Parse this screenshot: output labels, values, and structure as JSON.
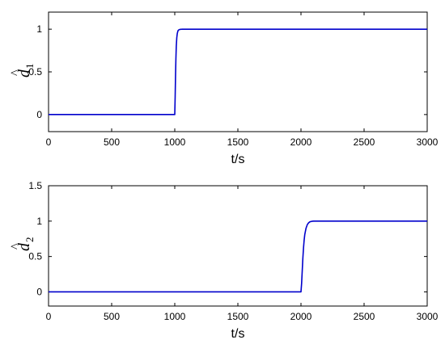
{
  "chart_data": [
    {
      "type": "line",
      "ylabel": {
        "symbol": "d",
        "hat": "^",
        "subscript": "1"
      },
      "xlabel": "t/s",
      "xlim": [
        0,
        3000
      ],
      "ylim": [
        -0.2,
        1.2
      ],
      "xticks": [
        "0",
        "500",
        "1000",
        "1500",
        "2000",
        "2500",
        "3000"
      ],
      "yticks": [
        "0",
        "0.5",
        "1"
      ],
      "grid": false,
      "series": [
        {
          "color": "#0000cc",
          "x": [
            0,
            1000,
            1003,
            1006,
            1009,
            1012,
            1016,
            1020,
            1025,
            1030,
            1040,
            1060,
            1100,
            3000
          ],
          "y": [
            0,
            0,
            0.2,
            0.45,
            0.65,
            0.8,
            0.9,
            0.95,
            0.98,
            0.99,
            0.997,
            1.0,
            1.0,
            1.0
          ]
        }
      ]
    },
    {
      "type": "line",
      "ylabel": {
        "symbol": "d",
        "hat": "^",
        "subscript": "2"
      },
      "xlabel": "t/s",
      "xlim": [
        0,
        3000
      ],
      "ylim": [
        -0.2,
        1.5
      ],
      "xticks": [
        "0",
        "500",
        "1000",
        "1500",
        "2000",
        "2500",
        "3000"
      ],
      "yticks": [
        "0",
        "0.5",
        "1",
        "1.5"
      ],
      "grid": false,
      "series": [
        {
          "color": "#0000cc",
          "x": [
            0,
            2000,
            2005,
            2010,
            2015,
            2020,
            2025,
            2030,
            2040,
            2050,
            2060,
            2070,
            2085,
            2100,
            2150,
            3000
          ],
          "y": [
            0,
            0,
            0.12,
            0.3,
            0.48,
            0.62,
            0.73,
            0.81,
            0.9,
            0.95,
            0.975,
            0.99,
            0.997,
            1.0,
            1.0,
            1.0
          ]
        }
      ]
    }
  ]
}
